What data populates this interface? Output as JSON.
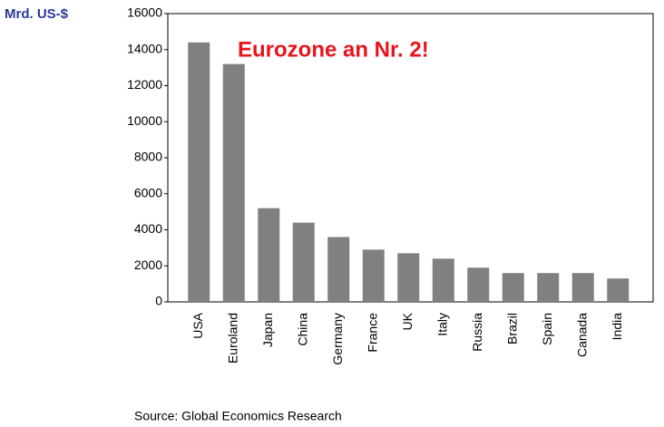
{
  "chart_data": {
    "type": "bar",
    "y_axis_label": "Mrd. US-$",
    "annotation": "Eurozone an Nr. 2!",
    "source": "Source: Global Economics Research",
    "categories": [
      "USA",
      "Euroland",
      "Japan",
      "China",
      "Germany",
      "France",
      "UK",
      "Italy",
      "Russia",
      "Brazil",
      "Spain",
      "Canada",
      "India"
    ],
    "values": [
      14400,
      13200,
      5200,
      4400,
      3600,
      2900,
      2700,
      2400,
      1900,
      1600,
      1600,
      1600,
      1300
    ],
    "color": "#808080",
    "ylim": [
      0,
      16000
    ],
    "yticks": [
      0,
      2000,
      4000,
      6000,
      8000,
      10000,
      12000,
      14000,
      16000
    ],
    "grid": false
  }
}
